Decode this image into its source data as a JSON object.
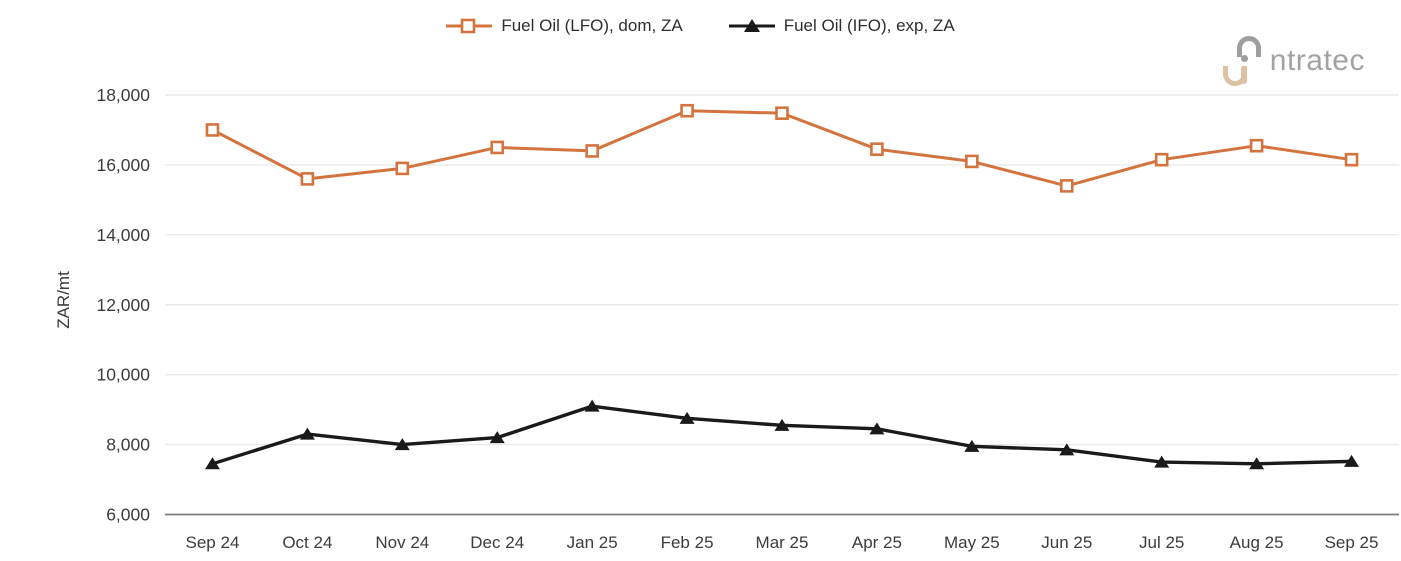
{
  "logo": {
    "brand_text": "ntratec"
  },
  "chart_data": {
    "type": "line",
    "title": "",
    "xlabel": "",
    "ylabel": "ZAR/mt",
    "ylim": [
      6000,
      18000
    ],
    "ytick_step": 2000,
    "grid": "horizontal-only",
    "legend_position": "top-center",
    "categories": [
      "Sep 24",
      "Oct 24",
      "Nov 24",
      "Dec 24",
      "Jan 25",
      "Feb 25",
      "Mar 25",
      "Apr 25",
      "May 25",
      "Jun 25",
      "Jul 25",
      "Aug 25",
      "Sep 25"
    ],
    "series": [
      {
        "name": "Fuel Oil (LFO), dom, ZA",
        "color": "#d3743e",
        "marker": "square",
        "values": [
          17000,
          15600,
          15900,
          16500,
          16400,
          17550,
          17480,
          16450,
          16100,
          15400,
          16150,
          16550,
          16150
        ]
      },
      {
        "name": "Fuel Oil (IFO), exp, ZA",
        "color": "#1a1a1a",
        "marker": "triangle",
        "values": [
          7450,
          8300,
          8000,
          8200,
          9100,
          8750,
          8550,
          8450,
          7950,
          7850,
          7500,
          7450,
          7520
        ]
      }
    ]
  }
}
